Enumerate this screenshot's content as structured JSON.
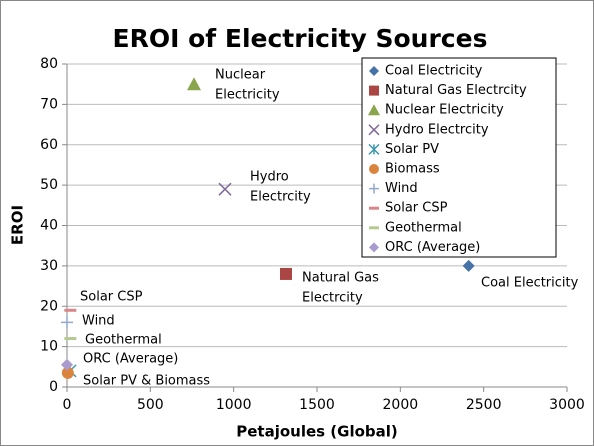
{
  "chart_data": {
    "type": "scatter",
    "title": "EROI of Electricity Sources",
    "xlabel": "Petajoules (Global)",
    "ylabel": "EROI",
    "xlim": [
      0,
      3000
    ],
    "xticks": [
      0,
      500,
      1000,
      1500,
      2000,
      2500,
      3000
    ],
    "ylim": [
      0,
      80
    ],
    "yticks": [
      0,
      10,
      20,
      30,
      40,
      50,
      60,
      70,
      80
    ],
    "grid": true,
    "legend": "upper right",
    "series": [
      {
        "name": "Coal Electricity",
        "color": "#4572a7",
        "marker": "diamond",
        "x": [
          2410
        ],
        "values": [
          30
        ]
      },
      {
        "name": "Natural Gas Electrcity",
        "color": "#aa4643",
        "marker": "square",
        "x": [
          1314
        ],
        "values": [
          28
        ]
      },
      {
        "name": "Nuclear Electricity",
        "color": "#89a54e",
        "marker": "triangle",
        "x": [
          762
        ],
        "values": [
          75
        ]
      },
      {
        "name": "Hydro Electrcity",
        "color": "#80699b",
        "marker": "x",
        "x": [
          948
        ],
        "values": [
          49
        ]
      },
      {
        "name": "Solar PV",
        "color": "#3d96ae",
        "marker": "star",
        "x": [
          18
        ],
        "values": [
          4
        ]
      },
      {
        "name": "Biomass",
        "color": "#db843d",
        "marker": "circle",
        "x": [
          5
        ],
        "values": [
          3.5
        ]
      },
      {
        "name": "Wind",
        "color": "#92a8cd",
        "marker": "plus",
        "x": [
          0
        ],
        "values": [
          16
        ]
      },
      {
        "name": "Solar CSP",
        "color": "#d9868a",
        "marker": "dash",
        "x": [
          20
        ],
        "values": [
          19
        ]
      },
      {
        "name": "Geothermal",
        "color": "#b5ca92",
        "marker": "dash",
        "x": [
          20
        ],
        "values": [
          12
        ]
      },
      {
        "name": "ORC (Average)",
        "color": "#a99bce",
        "marker": "diamond",
        "x": [
          0
        ],
        "values": [
          5.5
        ]
      }
    ],
    "annotations": [
      [
        "Nuclear",
        "Electricity"
      ],
      [
        "Hydro",
        "Electrcity"
      ],
      [
        "Natural Gas",
        "Electrcity"
      ],
      [
        "Coal Electricity"
      ],
      [
        "Solar CSP"
      ],
      [
        "Wind"
      ],
      [
        "Geothermal"
      ],
      [
        "ORC (Average)"
      ],
      [
        "Solar PV & Biomass"
      ]
    ]
  }
}
